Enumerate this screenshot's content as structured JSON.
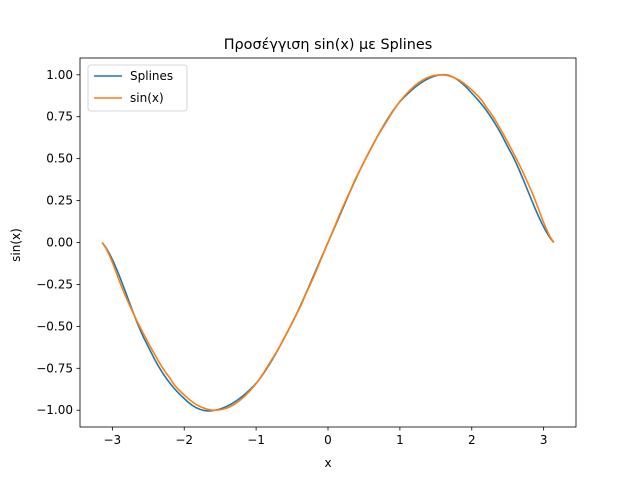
{
  "chart_data": {
    "type": "line",
    "title": "Προσέγγιση sin(x) με Splines",
    "xlabel": "x",
    "ylabel": "sin(x)",
    "xlim": [
      -3.45,
      3.45
    ],
    "ylim": [
      -1.1,
      1.1
    ],
    "xticks": [
      -3,
      -2,
      -1,
      0,
      1,
      2,
      3
    ],
    "xtick_labels": [
      "−3",
      "−2",
      "−1",
      "0",
      "1",
      "2",
      "3"
    ],
    "yticks": [
      -1.0,
      -0.75,
      -0.5,
      -0.25,
      0.0,
      0.25,
      0.5,
      0.75,
      1.0
    ],
    "ytick_labels": [
      "−1.00",
      "−0.75",
      "−0.50",
      "−0.25",
      "0.00",
      "0.25",
      "0.50",
      "0.75",
      "1.00"
    ],
    "grid": false,
    "legend_position": "top-left",
    "series": [
      {
        "name": "Splines",
        "color": "#1f77b4",
        "x": [
          -3.1416,
          -2.5,
          -2.0,
          -1.5708,
          -1.0,
          -0.5,
          0.0,
          0.5,
          1.0,
          1.5708,
          2.0,
          2.5,
          3.1416
        ],
        "y": [
          0.0,
          -0.62,
          -0.93,
          -1.0,
          -0.84,
          -0.48,
          0.0,
          0.48,
          0.84,
          1.0,
          0.89,
          0.57,
          0.0
        ]
      },
      {
        "name": "sin(x)",
        "color": "#ff7f0e",
        "x": [
          -3.1416,
          -2.8,
          -2.5,
          -2.2,
          -2.0,
          -1.8,
          -1.5708,
          -1.3,
          -1.0,
          -0.7,
          -0.5,
          -0.3,
          0.0,
          0.3,
          0.5,
          0.7,
          1.0,
          1.3,
          1.5708,
          1.8,
          2.0,
          2.2,
          2.5,
          2.8,
          3.1416
        ],
        "y": [
          0.0,
          -0.335,
          -0.598,
          -0.808,
          -0.909,
          -0.974,
          -1.0,
          -0.964,
          -0.841,
          -0.644,
          -0.479,
          -0.296,
          0.0,
          0.296,
          0.479,
          0.644,
          0.841,
          0.964,
          1.0,
          0.974,
          0.909,
          0.808,
          0.598,
          0.335,
          0.0
        ]
      }
    ]
  }
}
